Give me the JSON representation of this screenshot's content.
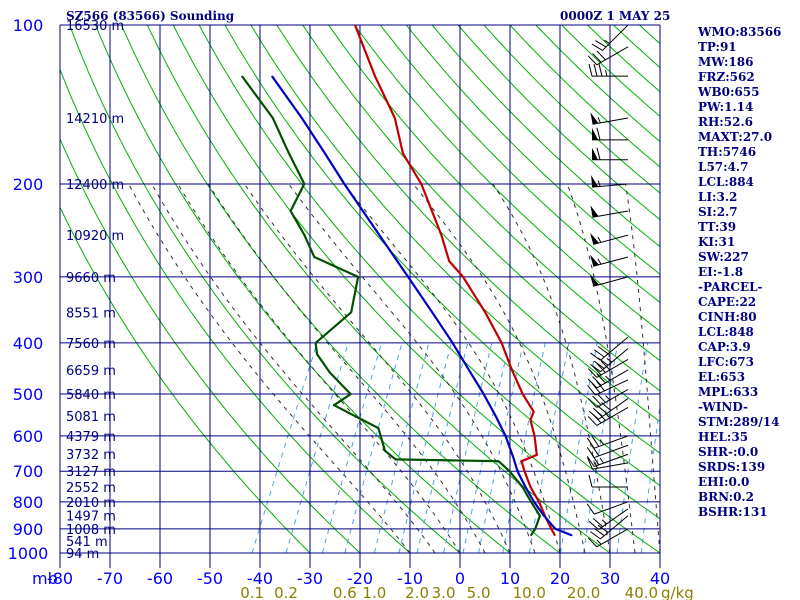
{
  "chart_data": {
    "type": "line",
    "title": "SZ566 (83566) Sounding",
    "time_label": "0000Z  1 MAY 25",
    "xlabel": "",
    "ylabel": "mb",
    "xlim": [
      -80,
      40
    ],
    "ylim": [
      1000,
      100
    ],
    "y_scale": "log",
    "grid": true,
    "pressure_ticks": [
      {
        "p": 100,
        "label": "100"
      },
      {
        "p": 200,
        "label": "200"
      },
      {
        "p": 300,
        "label": "300"
      },
      {
        "p": 400,
        "label": "400"
      },
      {
        "p": 500,
        "label": "500"
      },
      {
        "p": 600,
        "label": "600"
      },
      {
        "p": 700,
        "label": "700"
      },
      {
        "p": 800,
        "label": "800"
      },
      {
        "p": 900,
        "label": "900"
      },
      {
        "p": 1000,
        "label": "1000"
      }
    ],
    "temp_ticks": [
      {
        "t": -80,
        "label": "-80"
      },
      {
        "t": -70,
        "label": "-70"
      },
      {
        "t": -60,
        "label": "-60"
      },
      {
        "t": -50,
        "label": "-50"
      },
      {
        "t": -40,
        "label": "-40"
      },
      {
        "t": -30,
        "label": "-30"
      },
      {
        "t": -20,
        "label": "-20"
      },
      {
        "t": -10,
        "label": "-10"
      },
      {
        "t": 0,
        "label": "0"
      },
      {
        "t": 10,
        "label": "10"
      },
      {
        "t": 20,
        "label": "20"
      },
      {
        "t": 30,
        "label": "30"
      },
      {
        "t": 40,
        "label": "40"
      }
    ],
    "height_labels": [
      {
        "p": 100,
        "label": "16530 m"
      },
      {
        "p": 150,
        "label": "14210 m"
      },
      {
        "p": 200,
        "label": "12400 m"
      },
      {
        "p": 250,
        "label": "10920 m"
      },
      {
        "p": 300,
        "label": "9660 m"
      },
      {
        "p": 350,
        "label": "8551 m"
      },
      {
        "p": 400,
        "label": "7560 m"
      },
      {
        "p": 450,
        "label": "6659 m"
      },
      {
        "p": 500,
        "label": "5840 m"
      },
      {
        "p": 550,
        "label": "5081 m"
      },
      {
        "p": 600,
        "label": "4379 m"
      },
      {
        "p": 650,
        "label": "3732 m"
      },
      {
        "p": 700,
        "label": "3127 m"
      },
      {
        "p": 750,
        "label": "2552 m"
      },
      {
        "p": 800,
        "label": "2010 m"
      },
      {
        "p": 850,
        "label": "1497 m"
      },
      {
        "p": 900,
        "label": "1008 m"
      },
      {
        "p": 950,
        "label": "541 m"
      },
      {
        "p": 1000,
        "label": "94 m"
      }
    ],
    "mixing_ratio_labels": [
      {
        "w": 0.1,
        "label": "0.1"
      },
      {
        "w": 0.2,
        "label": "0.2"
      },
      {
        "w": 0.6,
        "label": "0.6"
      },
      {
        "w": 1.0,
        "label": "1.0"
      },
      {
        "w": 2.0,
        "label": "2.0"
      },
      {
        "w": 3.0,
        "label": "3.0"
      },
      {
        "w": 5.0,
        "label": "5.0"
      },
      {
        "w": 10.0,
        "label": "10.0"
      },
      {
        "w": 20.0,
        "label": "20.0"
      },
      {
        "w": 40.0,
        "label": "40.0"
      }
    ],
    "mixing_ratio_unit": "g/kg",
    "series": [
      {
        "key": "temperature",
        "color": "#c00000",
        "points": [
          {
            "p": 926,
            "t": 17.2
          },
          {
            "p": 900,
            "t": 15.8
          },
          {
            "p": 850,
            "t": 13.2
          },
          {
            "p": 800,
            "t": 10.6
          },
          {
            "p": 750,
            "t": 7.4
          },
          {
            "p": 700,
            "t": 4.6
          },
          {
            "p": 670,
            "t": 3.0
          },
          {
            "p": 652,
            "t": 5.4
          },
          {
            "p": 600,
            "t": 3.0
          },
          {
            "p": 560,
            "t": 0.6
          },
          {
            "p": 540,
            "t": 0.4
          },
          {
            "p": 500,
            "t": -3.6
          },
          {
            "p": 450,
            "t": -8.2
          },
          {
            "p": 400,
            "t": -13.0
          },
          {
            "p": 350,
            "t": -19.4
          },
          {
            "p": 300,
            "t": -27.4
          },
          {
            "p": 280,
            "t": -31.8
          },
          {
            "p": 250,
            "t": -36.0
          },
          {
            "p": 200,
            "t": -45.2
          },
          {
            "p": 175,
            "t": -52.0
          },
          {
            "p": 150,
            "t": -57.2
          },
          {
            "p": 125,
            "t": -65.4
          },
          {
            "p": 100,
            "t": -74.6
          }
        ]
      },
      {
        "key": "dewpoint",
        "color": "#005000",
        "points": [
          {
            "p": 926,
            "t": 12.4
          },
          {
            "p": 900,
            "t": 12.6
          },
          {
            "p": 850,
            "t": 12.2
          },
          {
            "p": 800,
            "t": 9.0
          },
          {
            "p": 750,
            "t": 5.8
          },
          {
            "p": 700,
            "t": 1.6
          },
          {
            "p": 670,
            "t": -1.6
          },
          {
            "p": 665,
            "t": -22.4
          },
          {
            "p": 640,
            "t": -25.4
          },
          {
            "p": 580,
            "t": -29.0
          },
          {
            "p": 525,
            "t": -40.2
          },
          {
            "p": 500,
            "t": -38.0
          },
          {
            "p": 455,
            "t": -44.4
          },
          {
            "p": 420,
            "t": -48.8
          },
          {
            "p": 400,
            "t": -50.2
          },
          {
            "p": 350,
            "t": -46.2
          },
          {
            "p": 300,
            "t": -48.4
          },
          {
            "p": 275,
            "t": -59.2
          },
          {
            "p": 250,
            "t": -63.4
          },
          {
            "p": 225,
            "t": -68.6
          },
          {
            "p": 200,
            "t": -68.6
          },
          {
            "p": 175,
            "t": -74.8
          },
          {
            "p": 150,
            "t": -81.6
          },
          {
            "p": 125,
            "t": -92.0
          }
        ]
      },
      {
        "key": "parcel",
        "color": "#0000c0",
        "points": [
          {
            "p": 926,
            "t": 20.6
          },
          {
            "p": 900,
            "t": 16.6
          },
          {
            "p": 850,
            "t": 13.0
          },
          {
            "p": 800,
            "t": 9.6
          },
          {
            "p": 750,
            "t": 6.4
          },
          {
            "p": 700,
            "t": 3.2
          },
          {
            "p": 660,
            "t": 1.0
          },
          {
            "p": 600,
            "t": -2.8
          },
          {
            "p": 550,
            "t": -6.8
          },
          {
            "p": 500,
            "t": -11.4
          },
          {
            "p": 450,
            "t": -16.8
          },
          {
            "p": 400,
            "t": -22.8
          },
          {
            "p": 350,
            "t": -30.0
          },
          {
            "p": 300,
            "t": -38.4
          },
          {
            "p": 250,
            "t": -48.4
          },
          {
            "p": 200,
            "t": -60.6
          },
          {
            "p": 175,
            "t": -67.6
          },
          {
            "p": 150,
            "t": -75.8
          },
          {
            "p": 125,
            "t": -86.0
          }
        ]
      }
    ],
    "wind_barbs": [
      {
        "p": 100,
        "dir": 225,
        "spd": 25
      },
      {
        "p": 110,
        "dir": 240,
        "spd": 30
      },
      {
        "p": 125,
        "dir": 270,
        "spd": 35
      },
      {
        "p": 150,
        "dir": 260,
        "spd": 55
      },
      {
        "p": 165,
        "dir": 270,
        "spd": 60
      },
      {
        "p": 180,
        "dir": 270,
        "spd": 60
      },
      {
        "p": 200,
        "dir": 265,
        "spd": 55
      },
      {
        "p": 225,
        "dir": 260,
        "spd": 50
      },
      {
        "p": 250,
        "dir": 255,
        "spd": 55
      },
      {
        "p": 275,
        "dir": 255,
        "spd": 55
      },
      {
        "p": 300,
        "dir": 255,
        "spd": 50
      },
      {
        "p": 390,
        "dir": 230,
        "spd": 30
      },
      {
        "p": 410,
        "dir": 230,
        "spd": 35
      },
      {
        "p": 430,
        "dir": 240,
        "spd": 40
      },
      {
        "p": 450,
        "dir": 240,
        "spd": 35
      },
      {
        "p": 470,
        "dir": 245,
        "spd": 30
      },
      {
        "p": 490,
        "dir": 240,
        "spd": 35
      },
      {
        "p": 510,
        "dir": 235,
        "spd": 40
      },
      {
        "p": 530,
        "dir": 240,
        "spd": 35
      },
      {
        "p": 600,
        "dir": 250,
        "spd": 25
      },
      {
        "p": 625,
        "dir": 250,
        "spd": 20
      },
      {
        "p": 650,
        "dir": 250,
        "spd": 25
      },
      {
        "p": 675,
        "dir": 260,
        "spd": 15
      },
      {
        "p": 750,
        "dir": 270,
        "spd": 10
      },
      {
        "p": 800,
        "dir": 250,
        "spd": 10
      },
      {
        "p": 825,
        "dir": 235,
        "spd": 25
      },
      {
        "p": 850,
        "dir": 230,
        "spd": 30
      },
      {
        "p": 900,
        "dir": 240,
        "spd": 15
      }
    ],
    "dry_adiabat_thetas": [
      -30,
      -20,
      -10,
      0,
      10,
      20,
      30,
      40,
      50,
      60,
      70,
      80,
      90,
      100,
      110,
      120,
      130,
      140,
      150,
      160,
      170,
      180,
      190,
      200,
      210,
      220
    ],
    "moist_adiabat_thetaw": [
      -10,
      -5,
      0,
      5,
      10,
      15,
      20,
      25,
      30,
      35,
      40
    ],
    "mixing_ratio_lines": [
      0.1,
      0.2,
      0.4,
      0.6,
      1.0,
      1.5,
      2.0,
      3.0,
      4.0,
      5.0,
      7.0,
      10.0,
      15.0,
      20.0,
      30.0,
      40.0
    ]
  },
  "indices": [
    "WMO:83566",
    "TP:91",
    "MW:186",
    "FRZ:562",
    "WB0:655",
    "PW:1.14",
    "RH:52.6",
    "MAXT:27.0",
    "TH:5746",
    "L57:4.7",
    "LCL:884",
    "LI:3.2",
    "SI:2.7",
    "TT:39",
    "KI:31",
    "SW:227",
    "EI:-1.8",
    "-PARCEL-",
    "CAPE:22",
    "CINH:80",
    "LCL:848",
    "CAP:3.9",
    "LFC:673",
    "EL:653",
    "MPL:633",
    "-WIND-",
    "STM:289/14",
    "HEL:35",
    "SHR-:0.0",
    "SRDS:139",
    "EHI:0.0",
    "BRN:0.2",
    "BSHR:131"
  ],
  "colors": {
    "isobar": "#000080",
    "isotherm": "#000080",
    "dry_adiabat": "#00b000",
    "moist_adiabat": "#303030",
    "mixing_ratio": "#4ea0e0",
    "text_index": "#000080",
    "wind_barb": "#000000"
  }
}
